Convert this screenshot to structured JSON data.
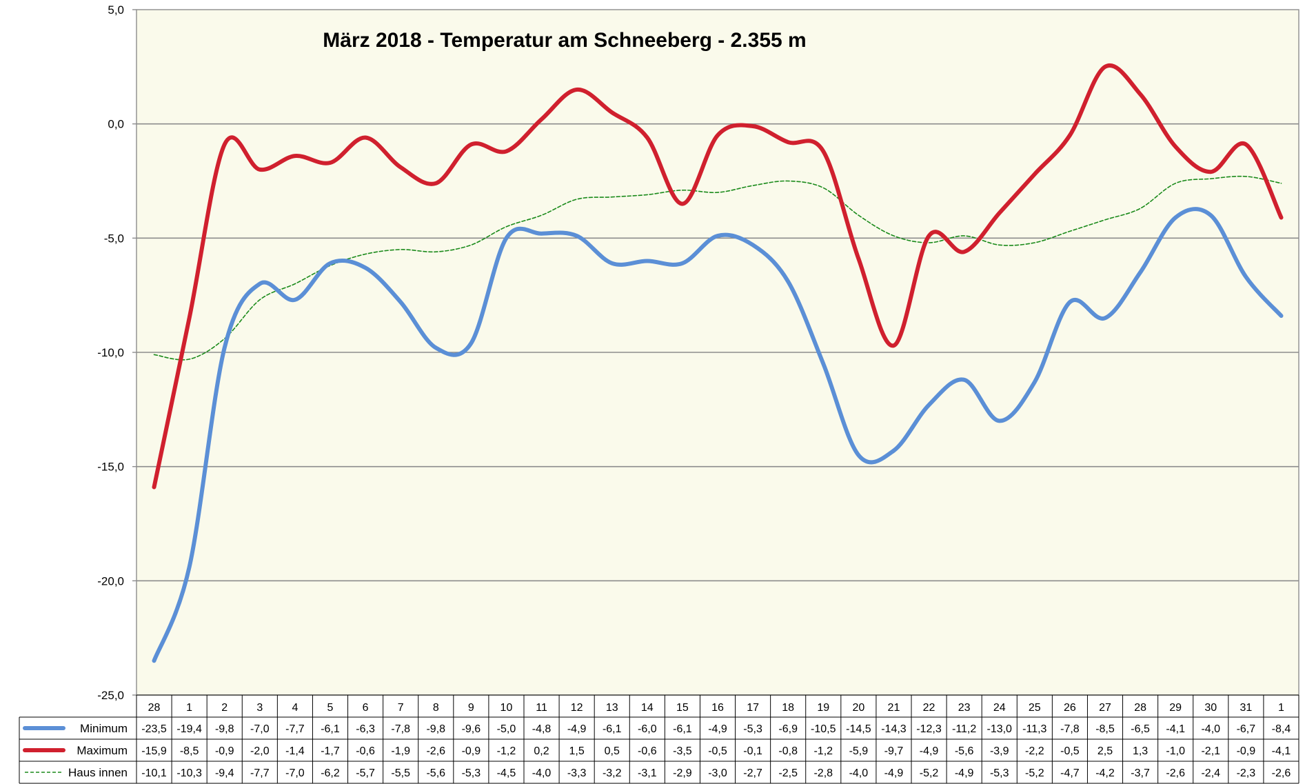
{
  "chart_data": {
    "type": "line",
    "title": "März 2018 - Temperatur am Schneeberg - 2.355 m",
    "xlabel": "",
    "ylabel": "",
    "ylim": [
      -25,
      5
    ],
    "yticks": [
      "5,0",
      "0,0",
      "-5,0",
      "-10,0",
      "-15,0",
      "-20,0",
      "-25,0"
    ],
    "ytick_values": [
      5,
      0,
      -5,
      -10,
      -15,
      -20,
      -25
    ],
    "grid": true,
    "legend": "data-table-left",
    "categories": [
      "28",
      "1",
      "2",
      "3",
      "4",
      "5",
      "6",
      "7",
      "8",
      "9",
      "10",
      "11",
      "12",
      "13",
      "14",
      "15",
      "16",
      "17",
      "18",
      "19",
      "20",
      "21",
      "22",
      "23",
      "24",
      "25",
      "26",
      "27",
      "28",
      "29",
      "30",
      "31",
      "1"
    ],
    "series": [
      {
        "name": "Minimum",
        "color": "#5b8fd6",
        "style": "solid",
        "values": [
          -23.5,
          -19.4,
          -9.8,
          -7.0,
          -7.7,
          -6.1,
          -6.3,
          -7.8,
          -9.8,
          -9.6,
          -5.0,
          -4.8,
          -4.9,
          -6.1,
          -6.0,
          -6.1,
          -4.9,
          -5.3,
          -6.9,
          -10.5,
          -14.5,
          -14.3,
          -12.3,
          -11.2,
          -13.0,
          -11.3,
          -7.8,
          -8.5,
          -6.5,
          -4.1,
          -4.0,
          -6.7,
          -8.4
        ],
        "labels": [
          "-23,5",
          "-19,4",
          "-9,8",
          "-7,0",
          "-7,7",
          "-6,1",
          "-6,3",
          "-7,8",
          "-9,8",
          "-9,6",
          "-5,0",
          "-4,8",
          "-4,9",
          "-6,1",
          "-6,0",
          "-6,1",
          "-4,9",
          "-5,3",
          "-6,9",
          "-10,5",
          "-14,5",
          "-14,3",
          "-12,3",
          "-11,2",
          "-13,0",
          "-11,3",
          "-7,8",
          "-8,5",
          "-6,5",
          "-4,1",
          "-4,0",
          "-6,7",
          "-8,4"
        ]
      },
      {
        "name": "Maximum",
        "color": "#d0202e",
        "style": "solid",
        "values": [
          -15.9,
          -8.5,
          -0.9,
          -2.0,
          -1.4,
          -1.7,
          -0.6,
          -1.9,
          -2.6,
          -0.9,
          -1.2,
          0.2,
          1.5,
          0.5,
          -0.6,
          -3.5,
          -0.5,
          -0.1,
          -0.8,
          -1.2,
          -5.9,
          -9.7,
          -4.9,
          -5.6,
          -3.9,
          -2.2,
          -0.5,
          2.5,
          1.3,
          -1.0,
          -2.1,
          -0.9,
          -4.1
        ],
        "labels": [
          "-15,9",
          "-8,5",
          "-0,9",
          "-2,0",
          "-1,4",
          "-1,7",
          "-0,6",
          "-1,9",
          "-2,6",
          "-0,9",
          "-1,2",
          "0,2",
          "1,5",
          "0,5",
          "-0,6",
          "-3,5",
          "-0,5",
          "-0,1",
          "-0,8",
          "-1,2",
          "-5,9",
          "-9,7",
          "-4,9",
          "-5,6",
          "-3,9",
          "-2,2",
          "-0,5",
          "2,5",
          "1,3",
          "-1,0",
          "-2,1",
          "-0,9",
          "-4,1"
        ]
      },
      {
        "name": "Haus innen",
        "color": "#1a8a1a",
        "style": "dashed",
        "values": [
          -10.1,
          -10.3,
          -9.4,
          -7.7,
          -7.0,
          -6.2,
          -5.7,
          -5.5,
          -5.6,
          -5.3,
          -4.5,
          -4.0,
          -3.3,
          -3.2,
          -3.1,
          -2.9,
          -3.0,
          -2.7,
          -2.5,
          -2.8,
          -4.0,
          -4.9,
          -5.2,
          -4.9,
          -5.3,
          -5.2,
          -4.7,
          -4.2,
          -3.7,
          -2.6,
          -2.4,
          -2.3,
          -2.6
        ],
        "labels": [
          "-10,1",
          "-10,3",
          "-9,4",
          "-7,7",
          "-7,0",
          "-6,2",
          "-5,7",
          "-5,5",
          "-5,6",
          "-5,3",
          "-4,5",
          "-4,0",
          "-3,3",
          "-3,2",
          "-3,1",
          "-2,9",
          "-3,0",
          "-2,7",
          "-2,5",
          "-2,8",
          "-4,0",
          "-4,9",
          "-5,2",
          "-4,9",
          "-5,3",
          "-5,2",
          "-4,7",
          "-4,2",
          "-3,7",
          "-2,6",
          "-2,4",
          "-2,3",
          "-2,6"
        ]
      }
    ]
  }
}
